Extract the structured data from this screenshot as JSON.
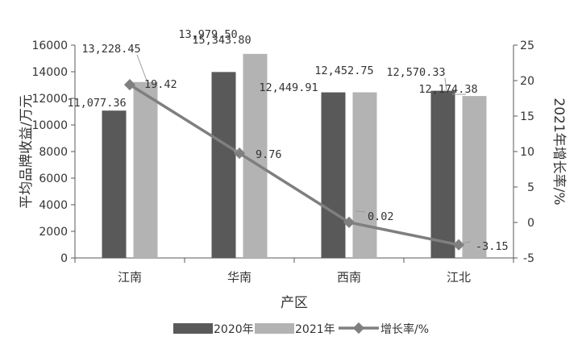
{
  "chart_data": {
    "type": "bar+line",
    "categories": [
      "江南",
      "华南",
      "西南",
      "江北"
    ],
    "series": [
      {
        "name": "2020年",
        "type": "bar",
        "axis": "left",
        "color": "#595959",
        "values": [
          11077.36,
          13979.5,
          12449.91,
          12570.33
        ]
      },
      {
        "name": "2021年",
        "type": "bar",
        "axis": "left",
        "color": "#b3b3b3",
        "values": [
          13228.45,
          15343.8,
          12452.75,
          12174.38
        ]
      },
      {
        "name": "增长率/%",
        "type": "line",
        "axis": "right",
        "color": "#7f7f7f",
        "values": [
          19.42,
          9.76,
          0.02,
          -3.15
        ]
      }
    ],
    "data_labels": {
      "2020年": [
        "11,077.36",
        "13,979.50",
        "12,449.91",
        "12,570.33"
      ],
      "2021年": [
        "13,228.45",
        "15,343.80",
        "12,452.75",
        "12,174.38"
      ],
      "增长率/%": [
        "19.42",
        "9.76",
        "0.02",
        "-3.15"
      ]
    },
    "xlabel": "产区",
    "ylabel": "平均品牌收益/万元",
    "y2label": "2021年增长率/%",
    "ylim": [
      0,
      16000
    ],
    "y2lim": [
      -5,
      25
    ],
    "yticks": [
      "0",
      "2000",
      "4000",
      "6000",
      "8000",
      "10000",
      "12000",
      "14000",
      "16000"
    ],
    "y2ticks": [
      "-5",
      "0",
      "5",
      "10",
      "15",
      "20",
      "25"
    ],
    "grid": false,
    "legend": "bottom"
  }
}
